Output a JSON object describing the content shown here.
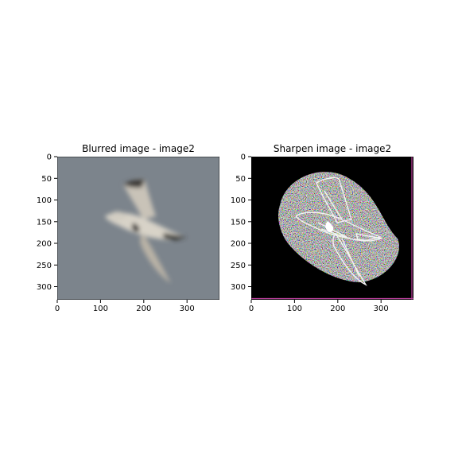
{
  "chart_data": [
    {
      "type": "image",
      "title": "Blurred image - image2",
      "xlim": [
        0,
        375
      ],
      "ylim": [
        330,
        0
      ],
      "xticks": [
        0,
        100,
        200,
        300
      ],
      "yticks": [
        0,
        50,
        100,
        150,
        200,
        250,
        300
      ],
      "background": "#7c848c",
      "subject": "bird-in-flight-blurred"
    },
    {
      "type": "image",
      "title": "Sharpen image - image2",
      "xlim": [
        0,
        375
      ],
      "ylim": [
        330,
        0
      ],
      "xticks": [
        0,
        100,
        200,
        300
      ],
      "yticks": [
        0,
        50,
        100,
        150,
        200,
        250,
        300
      ],
      "background": "#000000",
      "subject": "bird-in-flight-sharpened"
    }
  ]
}
